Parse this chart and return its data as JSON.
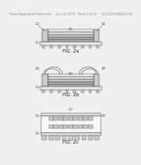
{
  "background_color": "#f0f0ee",
  "header_text": "Patent Application Publication     Jan. 10, 2019   Sheet 1 of 12     US 2019/0006212 A1",
  "header_fontsize": 2.3,
  "fig_labels": [
    "FIG. 2a",
    "FIG. 2b",
    "FIG. 2c"
  ],
  "fig_label_fontsize": 3.8,
  "line_color": "#444444",
  "fill_light": "#e8e8e8",
  "fill_mid": "#cccccc",
  "fill_dark": "#aaaaaa",
  "fill_white": "#f8f8f8",
  "lw_main": 0.35,
  "lw_thin": 0.25
}
